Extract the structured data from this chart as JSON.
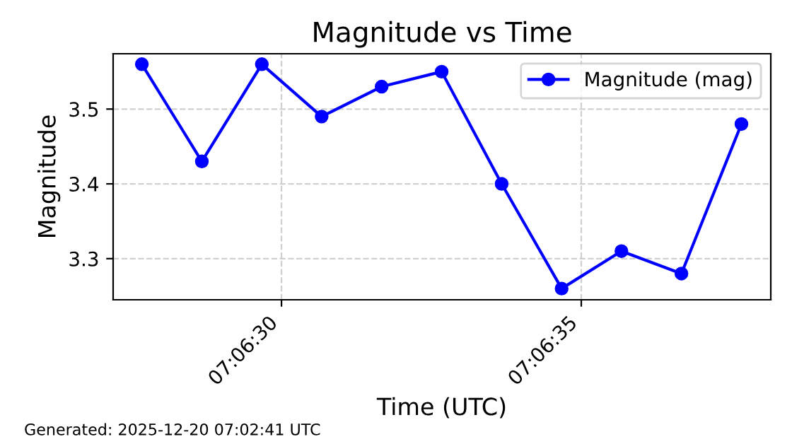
{
  "chart_data": {
    "type": "line",
    "title": "Magnitude vs Time",
    "xlabel": "Time (UTC)",
    "ylabel": "Magnitude",
    "x": [
      7.107686,
      7.107964,
      7.108242,
      7.108519,
      7.108797,
      7.109075,
      7.109353,
      7.109631,
      7.109908,
      7.110186,
      7.110464
    ],
    "series": [
      {
        "name": "Magnitude (mag)",
        "color": "#0000ff",
        "values": [
          3.56,
          3.43,
          3.56,
          3.49,
          3.53,
          3.55,
          3.4,
          3.26,
          3.31,
          3.28,
          3.48
        ]
      }
    ],
    "xlim": [
      7.107553,
      7.1106
    ],
    "xticks": [
      {
        "value": 7.108333,
        "label": "07:06:30"
      },
      {
        "value": 7.109722,
        "label": "07:06:35"
      }
    ],
    "ylim": [
      3.245,
      3.574
    ],
    "yticks": [
      3.3,
      3.4,
      3.5
    ],
    "grid": true,
    "legend": "top right",
    "marker": "circle",
    "line_style": "solid",
    "annotations": [
      "Generated: 2025-12-20 07:02:41 UTC"
    ]
  }
}
